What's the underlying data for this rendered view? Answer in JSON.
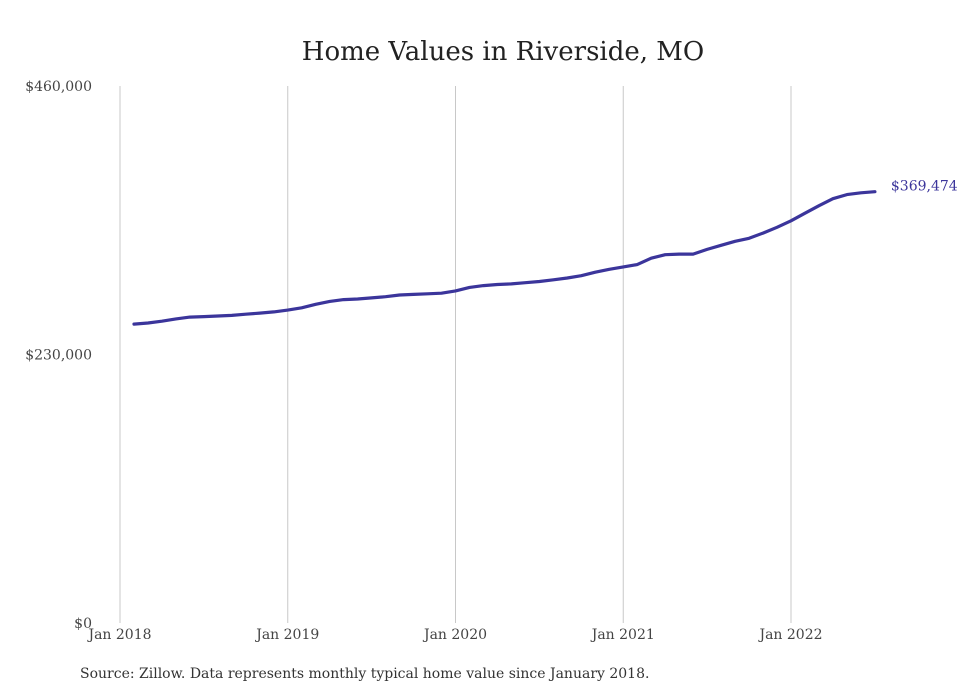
{
  "colors": {
    "line": "#3b359b",
    "grid": "#c8c8c8",
    "text": "#444444"
  },
  "source": "Source: Zillow. Data represents monthly typical home value since January 2018.",
  "chart_data": {
    "type": "line",
    "title": "Home Values in Riverside, MO",
    "xlabel": "",
    "ylabel": "",
    "ylim": [
      0,
      460000
    ],
    "grid": "vertical",
    "y_ticks": [
      {
        "value": 0,
        "label": "$0"
      },
      {
        "value": 230000,
        "label": "$230,000"
      },
      {
        "value": 460000,
        "label": "$460,000"
      }
    ],
    "x_ticks": [
      "Jan 2018",
      "Jan 2019",
      "Jan 2020",
      "Jan 2021",
      "Jan 2022"
    ],
    "end_label": "$369,474",
    "x": [
      "2018-02",
      "2018-03",
      "2018-04",
      "2018-05",
      "2018-06",
      "2018-07",
      "2018-08",
      "2018-09",
      "2018-10",
      "2018-11",
      "2018-12",
      "2019-01",
      "2019-02",
      "2019-03",
      "2019-04",
      "2019-05",
      "2019-06",
      "2019-07",
      "2019-08",
      "2019-09",
      "2019-10",
      "2019-11",
      "2019-12",
      "2020-01",
      "2020-02",
      "2020-03",
      "2020-04",
      "2020-05",
      "2020-06",
      "2020-07",
      "2020-08",
      "2020-09",
      "2020-10",
      "2020-11",
      "2020-12",
      "2021-01",
      "2021-02",
      "2021-03",
      "2021-04",
      "2021-05",
      "2021-06",
      "2021-07",
      "2021-08",
      "2021-09",
      "2021-10",
      "2021-11",
      "2021-12",
      "2022-01",
      "2022-02",
      "2022-03",
      "2022-04",
      "2022-05",
      "2022-06",
      "2022-07"
    ],
    "series": [
      {
        "values": [
          256000,
          257000,
          258500,
          260500,
          262000,
          262500,
          263000,
          263500,
          264500,
          265500,
          266500,
          268000,
          270000,
          273000,
          275500,
          277000,
          277500,
          278500,
          279500,
          281000,
          281500,
          282000,
          282500,
          284500,
          287500,
          289000,
          290000,
          290500,
          291500,
          292500,
          294000,
          295500,
          297500,
          300500,
          303000,
          305000,
          307000,
          312500,
          315500,
          316000,
          316000,
          320000,
          323500,
          327000,
          329500,
          334000,
          339000,
          344500,
          351000,
          357500,
          363500,
          367000,
          368500,
          369474
        ]
      }
    ]
  }
}
